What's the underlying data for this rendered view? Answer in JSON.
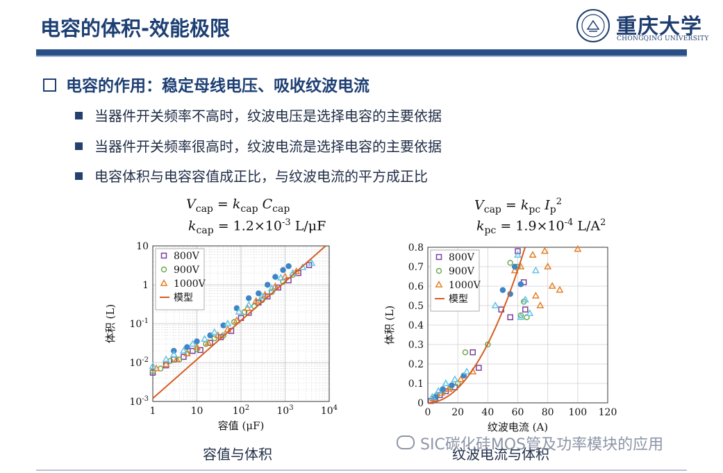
{
  "slide": {
    "title": "电容的体积-效能极限",
    "heading": "电容的作用：稳定母线电压、吸收纹波电流",
    "bullets": [
      "当器件开关频率不高时，纹波电压是选择电容的主要依据",
      "当器件开关频率很高时，纹波电流是选择电容的主要依据",
      "电容体积与电容容值成正比，与纹波电流的平方成正比"
    ],
    "logo_cn": "重庆大学",
    "logo_en": "CHONGQING UNIVERSITY",
    "logo_seal_text": "重庆大学",
    "watermark": "SIC碳化硅MOS管及功率模块的应用"
  },
  "formulas": {
    "left_eq": "V_cap = k_cap C_cap",
    "left_k": "k_cap = 1.2×10^-3 L/μF",
    "right_eq": "V_cap = k_pc I_p^2",
    "right_k": "k_pc = 1.9×10^-4 L/A^2"
  },
  "colors": {
    "title": "#1d3f73",
    "800V": "#7a3e9d",
    "900V": "#6aa84f",
    "1000V": "#e67e22",
    "blue_markers": "#3d85c6",
    "cyan_markers": "#5fc4e8",
    "model": "#d65b1f"
  },
  "chart_data": [
    {
      "type": "scatter",
      "caption": "容值与体积",
      "xlabel": "容值 (μF)",
      "ylabel": "体积 (L)",
      "xscale": "log",
      "yscale": "log",
      "xlim": [
        1,
        10000
      ],
      "ylim": [
        0.001,
        10
      ],
      "x_ticks": [
        1,
        10,
        100,
        1000,
        10000
      ],
      "x_tick_labels": [
        "1",
        "10",
        "10^2",
        "10^3",
        "10^4"
      ],
      "y_ticks": [
        0.001,
        0.01,
        0.1,
        1,
        10
      ],
      "y_tick_labels": [
        "10^-3",
        "10^-2",
        "10^-1",
        "1",
        "10"
      ],
      "grid": true,
      "legend_position": "top-left",
      "legend": [
        "800V",
        "900V",
        "1000V",
        "模型"
      ],
      "model": {
        "name": "模型",
        "k": 0.0012
      },
      "series": [
        {
          "name": "800V",
          "marker": "square",
          "x": [
            1,
            2,
            3,
            5,
            8,
            12,
            20,
            35,
            60,
            100,
            150,
            250,
            400,
            700,
            1200,
            2000,
            3500
          ],
          "y": [
            0.0055,
            0.0085,
            0.012,
            0.014,
            0.02,
            0.021,
            0.032,
            0.045,
            0.065,
            0.14,
            0.19,
            0.35,
            0.5,
            0.85,
            1.3,
            2.0,
            3.2
          ]
        },
        {
          "name": "900V",
          "marker": "circle",
          "x": [
            1,
            1.5,
            2.5,
            4,
            6,
            10,
            16,
            25,
            40,
            70,
            120,
            200,
            300,
            500,
            900,
            1500
          ],
          "y": [
            0.006,
            0.007,
            0.011,
            0.012,
            0.017,
            0.022,
            0.03,
            0.042,
            0.05,
            0.11,
            0.2,
            0.28,
            0.4,
            0.65,
            1.2,
            1.8
          ]
        },
        {
          "name": "1000V",
          "marker": "triangle",
          "x": [
            1.2,
            2,
            3.5,
            6,
            10,
            18,
            30,
            50,
            80,
            140,
            220,
            350,
            600,
            1000,
            1800
          ],
          "y": [
            0.007,
            0.009,
            0.012,
            0.017,
            0.025,
            0.032,
            0.05,
            0.07,
            0.12,
            0.25,
            0.38,
            0.55,
            0.9,
            1.6,
            2.2
          ]
        },
        {
          "name": "",
          "marker": "circle-filled-blue",
          "x": [
            3,
            6,
            10,
            20,
            40,
            80,
            150,
            250,
            400,
            600,
            900,
            1200
          ],
          "y": [
            0.02,
            0.025,
            0.035,
            0.05,
            0.09,
            0.25,
            0.45,
            0.6,
            1.0,
            1.6,
            2.4,
            3.0
          ]
        },
        {
          "name": "",
          "marker": "triangle-cyan",
          "x": [
            1,
            2,
            3,
            5,
            8,
            15,
            25,
            50,
            90,
            150,
            300,
            500,
            800,
            1500,
            2500,
            4000
          ],
          "y": [
            0.008,
            0.012,
            0.016,
            0.02,
            0.03,
            0.04,
            0.06,
            0.1,
            0.2,
            0.3,
            0.5,
            0.8,
            1.5,
            2.0,
            2.8,
            3.6
          ]
        }
      ]
    },
    {
      "type": "scatter",
      "caption": "纹波电流与体积",
      "xlabel": "纹波电流 (A)",
      "ylabel": "体积 (L)",
      "xlim": [
        0,
        120
      ],
      "ylim": [
        0,
        0.8
      ],
      "x_ticks": [
        0,
        20,
        40,
        60,
        80,
        100,
        120
      ],
      "y_ticks": [
        0,
        0.1,
        0.2,
        0.3,
        0.4,
        0.5,
        0.6,
        0.7,
        0.8
      ],
      "grid": true,
      "legend_position": "top-left",
      "legend": [
        "800V",
        "900V",
        "1000V",
        "模型"
      ],
      "model": {
        "name": "模型",
        "k": 0.00019
      },
      "series": [
        {
          "name": "800V",
          "marker": "square",
          "x": [
            2,
            5,
            8,
            12,
            18,
            30,
            34,
            49,
            55,
            60,
            64,
            65
          ],
          "y": [
            0.01,
            0.02,
            0.04,
            0.06,
            0.08,
            0.26,
            0.18,
            0.48,
            0.44,
            0.78,
            0.62,
            0.48
          ]
        },
        {
          "name": "900V",
          "marker": "circle",
          "x": [
            3,
            6,
            10,
            15,
            20,
            25,
            40,
            55,
            60,
            62,
            64,
            66
          ],
          "y": [
            0.02,
            0.04,
            0.06,
            0.08,
            0.1,
            0.26,
            0.3,
            0.72,
            0.7,
            0.45,
            0.52,
            0.44
          ]
        },
        {
          "name": "1000V",
          "marker": "triangle",
          "x": [
            4,
            9,
            14,
            22,
            30,
            58,
            62,
            70,
            72,
            75,
            78,
            80,
            83,
            88,
            100
          ],
          "y": [
            0.02,
            0.05,
            0.07,
            0.12,
            0.16,
            0.68,
            0.7,
            0.76,
            0.55,
            0.5,
            0.78,
            0.7,
            0.6,
            0.58,
            0.79
          ]
        },
        {
          "name": "",
          "marker": "circle-filled-blue",
          "x": [
            5,
            10,
            16,
            24,
            50,
            55,
            58,
            62
          ],
          "y": [
            0.03,
            0.07,
            0.09,
            0.14,
            0.58,
            0.56,
            0.7,
            0.61
          ]
        },
        {
          "name": "",
          "marker": "triangle-cyan",
          "x": [
            3,
            7,
            12,
            18,
            26,
            45,
            60,
            62,
            65,
            68,
            72
          ],
          "y": [
            0.03,
            0.06,
            0.1,
            0.12,
            0.16,
            0.5,
            0.76,
            0.44,
            0.53,
            0.46,
            0.68
          ]
        }
      ]
    }
  ]
}
